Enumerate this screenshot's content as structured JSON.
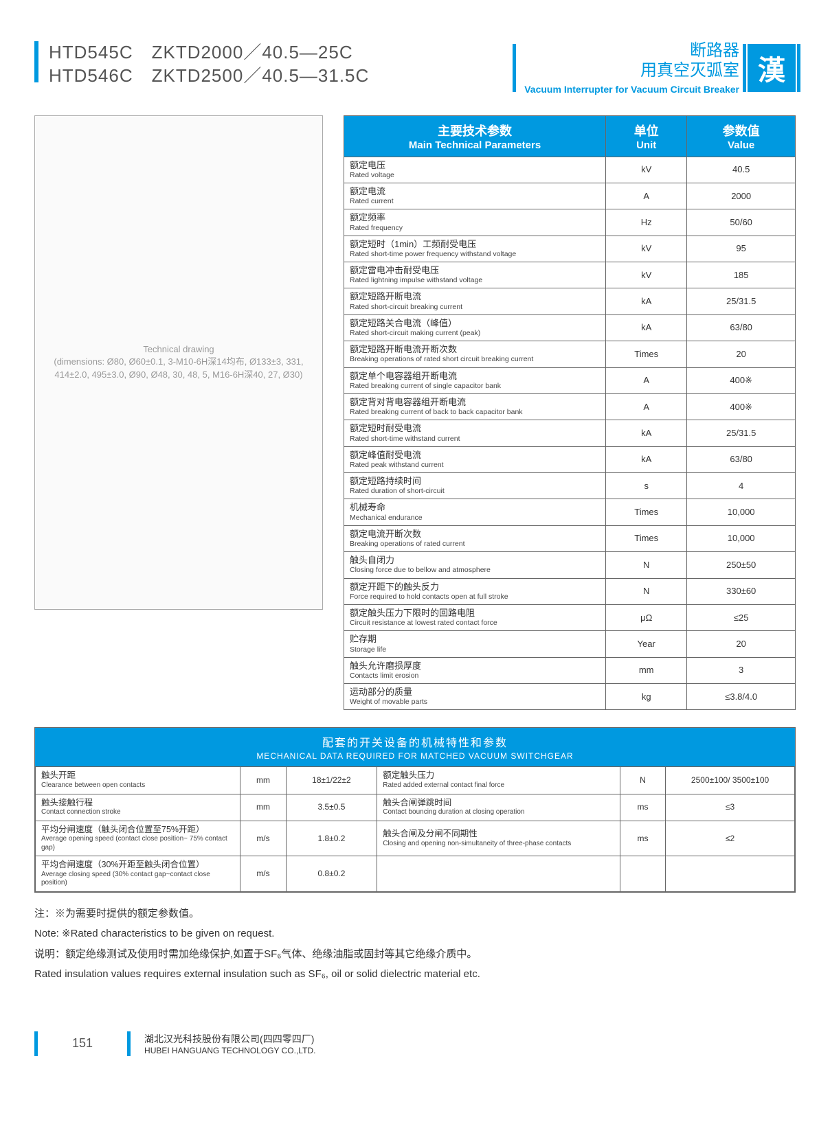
{
  "header": {
    "model_line1": "HTD545C　ZKTD2000／40.5—25C",
    "model_line2": "HTD546C　ZKTD2500／40.5—31.5C",
    "right_cn_line1": "断路器",
    "right_cn_line2": "用真空灭弧室",
    "right_en": "Vacuum Interrupter for Vacuum Circuit Breaker",
    "logo_char": "漢"
  },
  "diagram": {
    "caption": "Technical drawing\n(dimensions: Ø80, Ø60±0.1, 3-M10-6H深14均布, Ø133±3, 331, 414±2.0, 495±3.0, Ø90, Ø48, 30, 48, 5, M16-6H深40, 27, Ø30)"
  },
  "params": {
    "head_param_cn": "主要技术参数",
    "head_param_en": "Main Technical Parameters",
    "head_unit_cn": "单位",
    "head_unit_en": "Unit",
    "head_val_cn": "参数值",
    "head_val_en": "Value",
    "rows": [
      {
        "cn": "额定电压",
        "en": "Rated voltage",
        "unit": "kV",
        "val": "40.5"
      },
      {
        "cn": "额定电流",
        "en": "Rated current",
        "unit": "A",
        "val": "2000"
      },
      {
        "cn": "额定频率",
        "en": "Rated frequency",
        "unit": "Hz",
        "val": "50/60"
      },
      {
        "cn": "额定短时（1min）工频耐受电压",
        "en": "Rated short-time power frequency withstand voltage",
        "unit": "kV",
        "val": "95"
      },
      {
        "cn": "额定雷电冲击耐受电压",
        "en": "Rated lightning impulse withstand voltage",
        "unit": "kV",
        "val": "185"
      },
      {
        "cn": "额定短路开断电流",
        "en": "Rated short-circuit breaking current",
        "unit": "kA",
        "val": "25/31.5"
      },
      {
        "cn": "额定短路关合电流（峰值）",
        "en": "Rated short-circuit making current (peak)",
        "unit": "kA",
        "val": "63/80"
      },
      {
        "cn": "额定短路开断电流开断次数",
        "en": "Breaking operations of rated short circuit breaking current",
        "unit": "Times",
        "val": "20"
      },
      {
        "cn": "额定单个电容器组开断电流",
        "en": "Rated breaking current of single capacitor bank",
        "unit": "A",
        "val": "400※"
      },
      {
        "cn": "额定背对背电容器组开断电流",
        "en": "Rated breaking current of back to back capacitor bank",
        "unit": "A",
        "val": "400※"
      },
      {
        "cn": "额定短时耐受电流",
        "en": "Rated short-time withstand current",
        "unit": "kA",
        "val": "25/31.5"
      },
      {
        "cn": "额定峰值耐受电流",
        "en": "Rated peak withstand current",
        "unit": "kA",
        "val": "63/80"
      },
      {
        "cn": "额定短路持续时间",
        "en": "Rated duration of short-circuit",
        "unit": "s",
        "val": "4"
      },
      {
        "cn": "机械寿命",
        "en": "Mechanical endurance",
        "unit": "Times",
        "val": "10,000"
      },
      {
        "cn": "额定电流开断次数",
        "en": "Breaking operations of rated current",
        "unit": "Times",
        "val": "10,000"
      },
      {
        "cn": "触头自闭力",
        "en": "Closing force due to bellow and atmosphere",
        "unit": "N",
        "val": "250±50"
      },
      {
        "cn": "额定开距下的触头反力",
        "en": "Force required to hold contacts open at full stroke",
        "unit": "N",
        "val": "330±60"
      },
      {
        "cn": "额定触头压力下限时的回路电阻",
        "en": "Circuit resistance at lowest rated contact force",
        "unit": "μΩ",
        "val": "≤25"
      },
      {
        "cn": "贮存期",
        "en": "Storage life",
        "unit": "Year",
        "val": "20"
      },
      {
        "cn": "触头允许磨损厚度",
        "en": "Contacts limit erosion",
        "unit": "mm",
        "val": "3"
      },
      {
        "cn": "运动部分的质量",
        "en": "Weight of movable parts",
        "unit": "kg",
        "val": "≤3.8/4.0"
      }
    ]
  },
  "mech": {
    "title_cn": "配套的开关设备的机械特性和参数",
    "title_en": "MECHANICAL DATA REQUIRED FOR MATCHED VACUUM SWITCHGEAR",
    "rows": [
      {
        "l_cn": "触头开距",
        "l_en": "Clearance between open contacts",
        "l_unit": "mm",
        "l_val": "18±1/22±2",
        "r_cn": "额定触头压力",
        "r_en": "Rated added external contact final force",
        "r_unit": "N",
        "r_val": "2500±100/ 3500±100"
      },
      {
        "l_cn": "触头接触行程",
        "l_en": "Contact connection stroke",
        "l_unit": "mm",
        "l_val": "3.5±0.5",
        "r_cn": "触头合闸弹跳时间",
        "r_en": "Contact bouncing duration at closing operation",
        "r_unit": "ms",
        "r_val": "≤3"
      },
      {
        "l_cn": "平均分闸速度（触头闭合位置至75%开距）",
        "l_en": "Average opening speed (contact close position~ 75% contact gap)",
        "l_unit": "m/s",
        "l_val": "1.8±0.2",
        "r_cn": "触头合闸及分闸不同期性",
        "r_en": "Closing and opening non-simultaneity of three-phase contacts",
        "r_unit": "ms",
        "r_val": "≤2"
      },
      {
        "l_cn": "平均合闸速度（30%开距至触头闭合位置）",
        "l_en": "Average closing speed (30% contact gap~contact close position)",
        "l_unit": "m/s",
        "l_val": "0.8±0.2",
        "r_cn": "",
        "r_en": "",
        "r_unit": "",
        "r_val": ""
      }
    ]
  },
  "notes": {
    "n1": "注：※为需要时提供的额定参数值。",
    "n2": "Note: ※Rated characteristics to be given on request.",
    "n3": "说明：额定绝缘测试及使用时需加绝缘保护,如置于SF₆气体、绝缘油脂或固封等其它绝缘介质中。",
    "n4": "Rated insulation values requires external insulation such as SF₆, oil or solid dielectric material etc."
  },
  "footer": {
    "page": "151",
    "company_cn": "湖北汉光科技股份有限公司(四四零四厂)",
    "company_en": "HUBEI HANGUANG TECHNOLOGY CO.,LTD."
  }
}
